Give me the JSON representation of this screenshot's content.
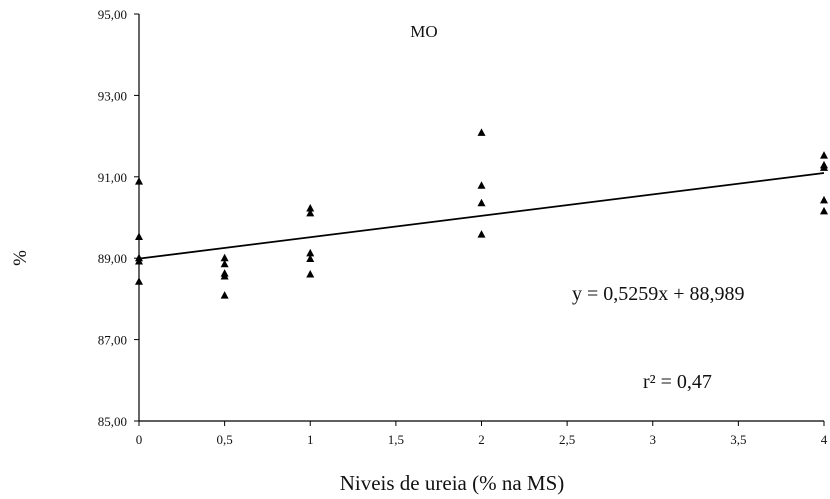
{
  "chart_data": {
    "type": "scatter",
    "title": "MO",
    "xlabel": "Niveis de ureia (% na MS)",
    "ylabel": "%",
    "xlim": [
      0,
      4
    ],
    "ylim": [
      85,
      95
    ],
    "x_ticks": [
      "0",
      "0,5",
      "1",
      "1,5",
      "2",
      "2,5",
      "3",
      "3,5",
      "4"
    ],
    "y_ticks": [
      "85,00",
      "87,00",
      "89,00",
      "91,00",
      "93,00",
      "95,00"
    ],
    "grid": false,
    "marker": "triangle",
    "marker_color": "#000000",
    "series": [
      {
        "points": [
          [
            0,
            90.88
          ],
          [
            0,
            89.52
          ],
          [
            0,
            89.0
          ],
          [
            0,
            88.92
          ],
          [
            0,
            88.42
          ],
          [
            0.5,
            89.0
          ],
          [
            0.5,
            88.85
          ],
          [
            0.5,
            88.62
          ],
          [
            0.5,
            88.55
          ],
          [
            0.5,
            88.08
          ],
          [
            1,
            90.22
          ],
          [
            1,
            90.1
          ],
          [
            1,
            89.12
          ],
          [
            1,
            88.98
          ],
          [
            1,
            88.6
          ],
          [
            2,
            92.08
          ],
          [
            2,
            90.78
          ],
          [
            2,
            90.35
          ],
          [
            2,
            89.58
          ],
          [
            4,
            91.52
          ],
          [
            4,
            91.28
          ],
          [
            4,
            91.22
          ],
          [
            4,
            90.42
          ],
          [
            4,
            90.15
          ]
        ]
      }
    ],
    "trendline": {
      "slope": 0.5259,
      "intercept": 88.989,
      "x_range": [
        0,
        4
      ]
    },
    "annotations": {
      "equation": "y = 0,5259x + 88,989",
      "r_squared": "r² = 0,47"
    }
  }
}
